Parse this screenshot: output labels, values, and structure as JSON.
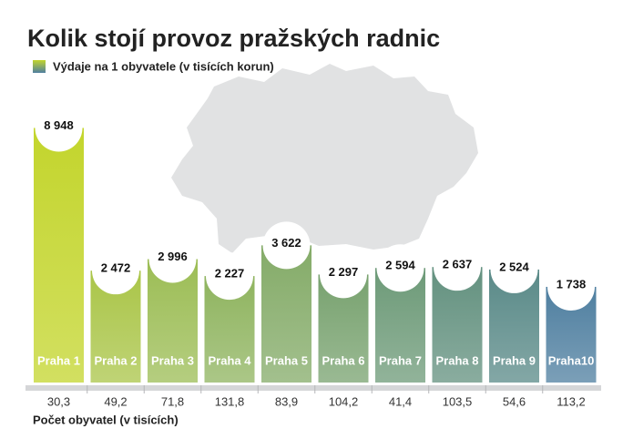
{
  "chart_data": {
    "type": "bar",
    "title": "Kolik stojí provoz pražských radnic",
    "categories": [
      "Praha 1",
      "Praha 2",
      "Praha 3",
      "Praha 4",
      "Praha 5",
      "Praha 6",
      "Praha 7",
      "Praha 8",
      "Praha 9",
      "Praha10"
    ],
    "series": [
      {
        "name": "Výdaje na 1 obyvatele (v tisících korun)",
        "values": [
          8948,
          2472,
          2996,
          2227,
          3622,
          2297,
          2594,
          2637,
          2524,
          1738
        ],
        "value_labels": [
          "8 948",
          "2 472",
          "2 996",
          "2 227",
          "3 622",
          "2 297",
          "2 594",
          "2 637",
          "2 524",
          "1 738"
        ],
        "colors": [
          "#c3d52c",
          "#aac548",
          "#9cbd55",
          "#8fb45f",
          "#84ab68",
          "#78a26f",
          "#6d9a78",
          "#63917f",
          "#5a8a88",
          "#4f7fa0"
        ]
      }
    ],
    "population_title": "Počet obyvatel (v tisících)",
    "population_labels": [
      "30,3",
      "49,2",
      "71,8",
      "131,8",
      "83,9",
      "104,2",
      "41,4",
      "103,5",
      "54,6",
      "113,2"
    ]
  }
}
